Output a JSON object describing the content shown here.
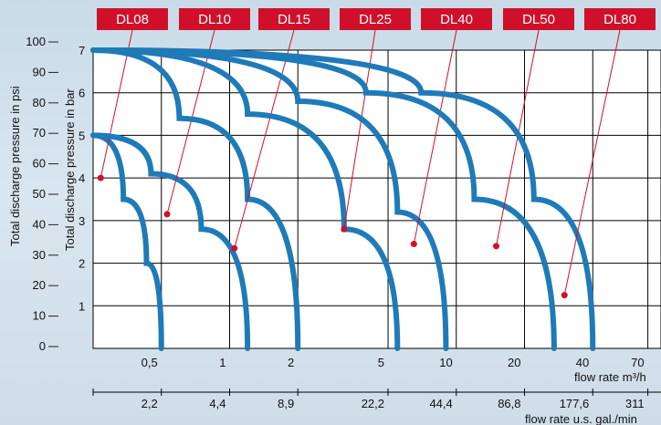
{
  "chart_data": {
    "type": "line",
    "title": "",
    "xlabel": "flow rate m³/h",
    "xlabel_secondary": "flow rate u.s. gal./min",
    "ylabel": "Total discharge pressure in bar",
    "ylabel_secondary": "Total discharge pressure in psi",
    "x_scale": "log",
    "x_ticks": [
      "0,5",
      "1",
      "2",
      "5",
      "10",
      "20",
      "40",
      "70"
    ],
    "x_ticks_secondary": [
      "2,2",
      "4,4",
      "8,9",
      "22,2",
      "44,4",
      "86,8",
      "177,6",
      "311"
    ],
    "y_ticks": [
      "1",
      "2",
      "3",
      "4",
      "5",
      "6",
      "7"
    ],
    "y_ticks_secondary": [
      "0",
      "10",
      "20",
      "30",
      "40",
      "50",
      "60",
      "70",
      "80",
      "90",
      "100"
    ],
    "ylim": [
      0,
      7
    ],
    "grid": true,
    "curve_color": "#1f7ab8",
    "marker_color": "#d0102a",
    "tab_color": "#d0102a",
    "series": [
      {
        "name": "DL08",
        "points": [
          [
            0.25,
            5
          ],
          [
            0.34,
            3.5
          ],
          [
            0.43,
            2
          ],
          [
            0.5,
            0
          ]
        ],
        "marker": [
          0.27,
          4.0
        ]
      },
      {
        "name": "DL10",
        "points": [
          [
            0.25,
            5
          ],
          [
            0.45,
            4.1
          ],
          [
            0.75,
            2.8
          ],
          [
            1.2,
            0
          ]
        ],
        "marker": [
          0.53,
          3.15
        ]
      },
      {
        "name": "DL15",
        "points": [
          [
            0.25,
            7
          ],
          [
            0.6,
            5.4
          ],
          [
            1.2,
            3.5
          ],
          [
            2.0,
            0
          ]
        ],
        "marker": [
          1.05,
          2.35
        ]
      },
      {
        "name": "DL25",
        "points": [
          [
            0.25,
            7
          ],
          [
            1.2,
            5.5
          ],
          [
            3.2,
            2.8
          ],
          [
            5.5,
            0
          ]
        ],
        "marker": [
          3.2,
          2.8
        ]
      },
      {
        "name": "DL40",
        "points": [
          [
            0.25,
            7
          ],
          [
            2.0,
            5.8
          ],
          [
            5.5,
            3.2
          ],
          [
            9.0,
            0
          ]
        ],
        "marker": [
          6.5,
          2.45
        ]
      },
      {
        "name": "DL50",
        "points": [
          [
            0.25,
            7
          ],
          [
            4.0,
            6.0
          ],
          [
            12.0,
            3.5
          ],
          [
            27.0,
            0
          ]
        ],
        "marker": [
          15.0,
          2.4
        ]
      },
      {
        "name": "DL80",
        "points": [
          [
            0.25,
            7
          ],
          [
            7.0,
            6.0
          ],
          [
            22.0,
            3.5
          ],
          [
            40.0,
            0
          ]
        ],
        "marker": [
          30.0,
          1.25
        ]
      }
    ]
  }
}
